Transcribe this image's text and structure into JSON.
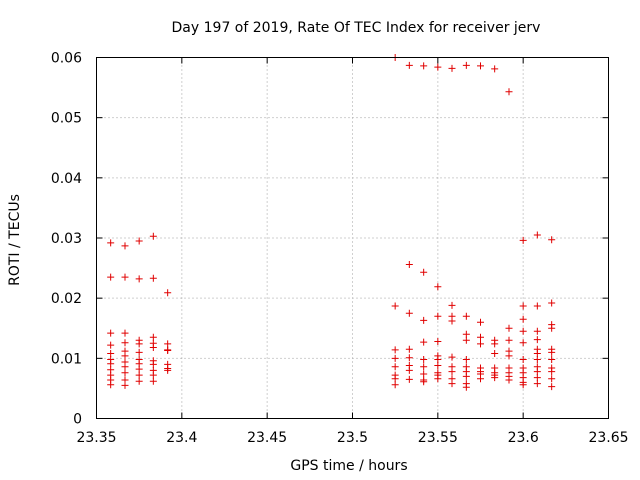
{
  "chart_data": {
    "type": "scatter",
    "title": "Day 197 of 2019, Rate Of TEC Index for receiver jerv",
    "xlabel": "GPS time / hours",
    "ylabel": "ROTI / TECUs",
    "xlim": [
      23.35,
      23.65
    ],
    "ylim": [
      0,
      0.06
    ],
    "grid": true,
    "marker": "+",
    "color": "#e00000",
    "x_ticks": [
      "23.35",
      "23.4",
      "23.45",
      "23.5",
      "23.55",
      "23.6",
      "23.65"
    ],
    "y_ticks": [
      "0",
      "0.01",
      "0.02",
      "0.03",
      "0.04",
      "0.05",
      "0.06"
    ],
    "series": [
      {
        "name": "ROTI",
        "points": [
          [
            23.3583,
            0.0292
          ],
          [
            23.3583,
            0.0235
          ],
          [
            23.3583,
            0.0142
          ],
          [
            23.3583,
            0.0122
          ],
          [
            23.3583,
            0.0108
          ],
          [
            23.3583,
            0.0098
          ],
          [
            23.3583,
            0.0091
          ],
          [
            23.3583,
            0.0081
          ],
          [
            23.3583,
            0.0072
          ],
          [
            23.3583,
            0.0064
          ],
          [
            23.3583,
            0.0056
          ],
          [
            23.3667,
            0.0287
          ],
          [
            23.3667,
            0.0235
          ],
          [
            23.3667,
            0.0142
          ],
          [
            23.3667,
            0.0126
          ],
          [
            23.3667,
            0.0112
          ],
          [
            23.3667,
            0.0104
          ],
          [
            23.3667,
            0.0094
          ],
          [
            23.3667,
            0.0086
          ],
          [
            23.3667,
            0.0076
          ],
          [
            23.3667,
            0.0064
          ],
          [
            23.3667,
            0.0055
          ],
          [
            23.375,
            0.0295
          ],
          [
            23.375,
            0.0232
          ],
          [
            23.375,
            0.013
          ],
          [
            23.375,
            0.0124
          ],
          [
            23.375,
            0.011
          ],
          [
            23.375,
            0.0098
          ],
          [
            23.375,
            0.0091
          ],
          [
            23.375,
            0.0082
          ],
          [
            23.375,
            0.0072
          ],
          [
            23.375,
            0.0062
          ],
          [
            23.3833,
            0.0303
          ],
          [
            23.3833,
            0.0233
          ],
          [
            23.3833,
            0.0135
          ],
          [
            23.3833,
            0.0125
          ],
          [
            23.3833,
            0.0118
          ],
          [
            23.3833,
            0.0096
          ],
          [
            23.3833,
            0.009
          ],
          [
            23.3833,
            0.008
          ],
          [
            23.3833,
            0.0072
          ],
          [
            23.3833,
            0.0062
          ],
          [
            23.3917,
            0.0209
          ],
          [
            23.3917,
            0.0124
          ],
          [
            23.3917,
            0.0114
          ],
          [
            23.3917,
            0.0113
          ],
          [
            23.3917,
            0.009
          ],
          [
            23.3917,
            0.0083
          ],
          [
            23.3917,
            0.008
          ],
          [
            23.525,
            0.06
          ],
          [
            23.525,
            0.0187
          ],
          [
            23.525,
            0.0114
          ],
          [
            23.525,
            0.01
          ],
          [
            23.525,
            0.0086
          ],
          [
            23.525,
            0.0072
          ],
          [
            23.525,
            0.0066
          ],
          [
            23.525,
            0.0056
          ],
          [
            23.5333,
            0.0587
          ],
          [
            23.5333,
            0.0256
          ],
          [
            23.5333,
            0.0175
          ],
          [
            23.5333,
            0.0115
          ],
          [
            23.5333,
            0.0101
          ],
          [
            23.5333,
            0.0088
          ],
          [
            23.5333,
            0.008
          ],
          [
            23.5333,
            0.0065
          ],
          [
            23.5417,
            0.0586
          ],
          [
            23.5417,
            0.0243
          ],
          [
            23.5417,
            0.0163
          ],
          [
            23.5417,
            0.0127
          ],
          [
            23.5417,
            0.0098
          ],
          [
            23.5417,
            0.0086
          ],
          [
            23.5417,
            0.0074
          ],
          [
            23.5417,
            0.0064
          ],
          [
            23.5417,
            0.0061
          ],
          [
            23.55,
            0.0584
          ],
          [
            23.55,
            0.0219
          ],
          [
            23.55,
            0.017
          ],
          [
            23.55,
            0.0128
          ],
          [
            23.55,
            0.0104
          ],
          [
            23.55,
            0.0098
          ],
          [
            23.55,
            0.0088
          ],
          [
            23.55,
            0.0076
          ],
          [
            23.55,
            0.0072
          ],
          [
            23.55,
            0.0066
          ],
          [
            23.5583,
            0.0582
          ],
          [
            23.5583,
            0.0188
          ],
          [
            23.5583,
            0.017
          ],
          [
            23.5583,
            0.0162
          ],
          [
            23.5583,
            0.0102
          ],
          [
            23.5583,
            0.0086
          ],
          [
            23.5583,
            0.0078
          ],
          [
            23.5583,
            0.0066
          ],
          [
            23.5583,
            0.0058
          ],
          [
            23.5667,
            0.0587
          ],
          [
            23.5667,
            0.017
          ],
          [
            23.5667,
            0.014
          ],
          [
            23.5667,
            0.013
          ],
          [
            23.5667,
            0.0098
          ],
          [
            23.5667,
            0.0086
          ],
          [
            23.5667,
            0.0078
          ],
          [
            23.5667,
            0.007
          ],
          [
            23.5667,
            0.0058
          ],
          [
            23.5667,
            0.0052
          ],
          [
            23.575,
            0.0586
          ],
          [
            23.575,
            0.016
          ],
          [
            23.575,
            0.0135
          ],
          [
            23.575,
            0.0124
          ],
          [
            23.575,
            0.0084
          ],
          [
            23.575,
            0.0078
          ],
          [
            23.575,
            0.0074
          ],
          [
            23.575,
            0.0066
          ],
          [
            23.5833,
            0.0581
          ],
          [
            23.5833,
            0.013
          ],
          [
            23.5833,
            0.0124
          ],
          [
            23.5833,
            0.0108
          ],
          [
            23.5833,
            0.0084
          ],
          [
            23.5833,
            0.0076
          ],
          [
            23.5833,
            0.0072
          ],
          [
            23.5833,
            0.0068
          ],
          [
            23.5917,
            0.0543
          ],
          [
            23.5917,
            0.015
          ],
          [
            23.5917,
            0.013
          ],
          [
            23.5917,
            0.0112
          ],
          [
            23.5917,
            0.0104
          ],
          [
            23.5917,
            0.0084
          ],
          [
            23.5917,
            0.0076
          ],
          [
            23.5917,
            0.007
          ],
          [
            23.5917,
            0.0064
          ],
          [
            23.6,
            0.0296
          ],
          [
            23.6,
            0.0187
          ],
          [
            23.6,
            0.0165
          ],
          [
            23.6,
            0.0145
          ],
          [
            23.6,
            0.0126
          ],
          [
            23.6,
            0.0098
          ],
          [
            23.6,
            0.0084
          ],
          [
            23.6,
            0.0076
          ],
          [
            23.6,
            0.0068
          ],
          [
            23.6,
            0.006
          ],
          [
            23.6,
            0.0056
          ],
          [
            23.6083,
            0.0305
          ],
          [
            23.6083,
            0.0187
          ],
          [
            23.6083,
            0.0145
          ],
          [
            23.6083,
            0.0131
          ],
          [
            23.6083,
            0.0115
          ],
          [
            23.6083,
            0.0108
          ],
          [
            23.6083,
            0.0098
          ],
          [
            23.6083,
            0.0086
          ],
          [
            23.6083,
            0.0078
          ],
          [
            23.6083,
            0.0068
          ],
          [
            23.6083,
            0.0058
          ],
          [
            23.6167,
            0.0297
          ],
          [
            23.6167,
            0.0192
          ],
          [
            23.6167,
            0.0156
          ],
          [
            23.6167,
            0.015
          ],
          [
            23.6167,
            0.0115
          ],
          [
            23.6167,
            0.011
          ],
          [
            23.6167,
            0.0098
          ],
          [
            23.6167,
            0.0084
          ],
          [
            23.6167,
            0.0078
          ],
          [
            23.6167,
            0.0066
          ],
          [
            23.6167,
            0.0053
          ]
        ]
      }
    ]
  }
}
